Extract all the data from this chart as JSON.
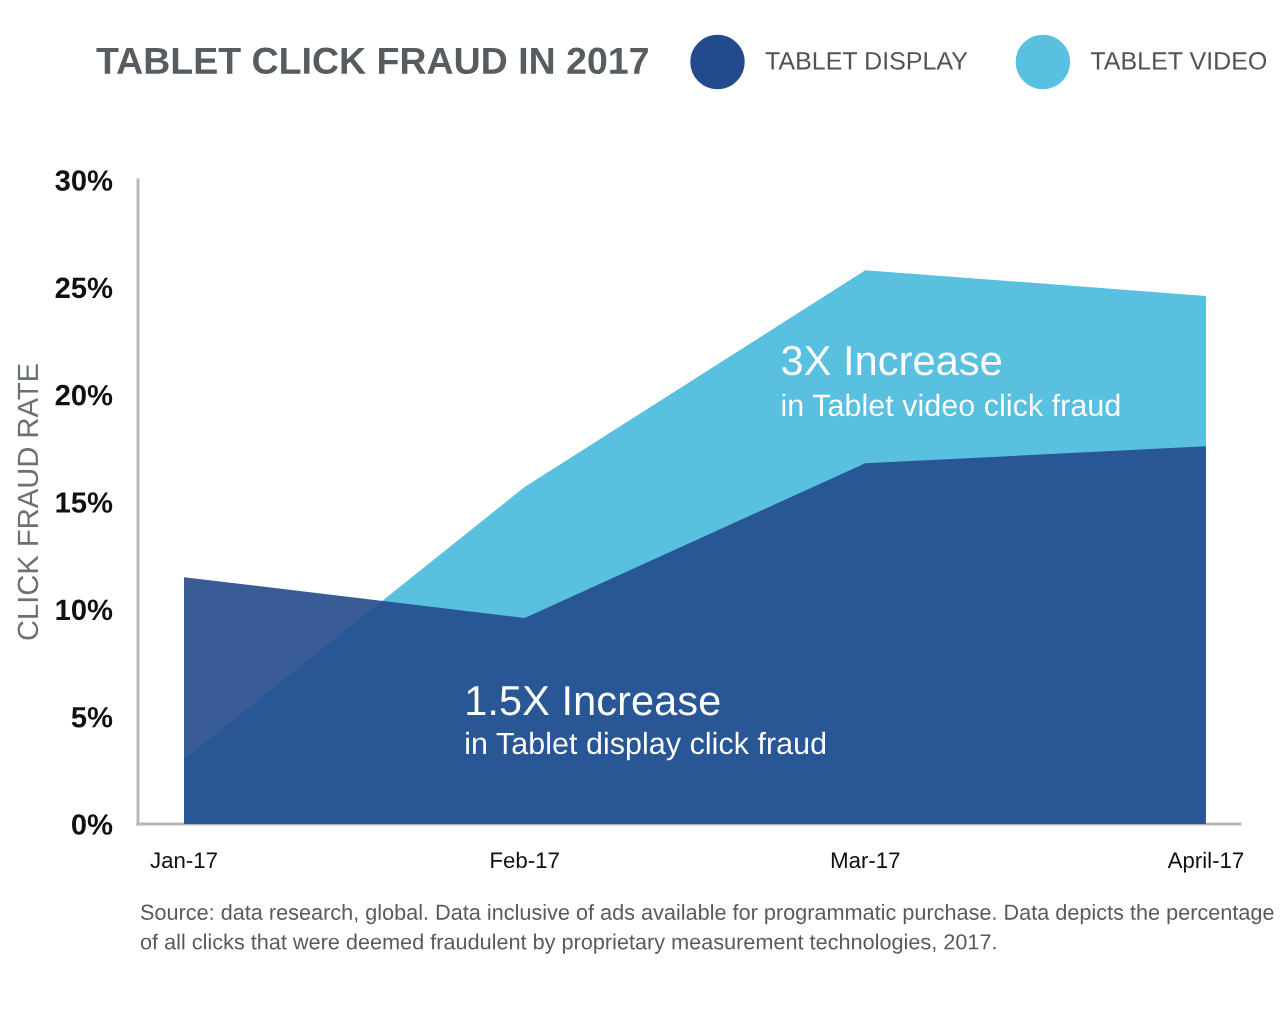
{
  "chart_data": {
    "type": "area",
    "title": "TABLET CLICK FRAUD IN 2017",
    "ylabel": "CLICK FRAUD RATE",
    "categories": [
      "Jan-17",
      "Feb-17",
      "Mar-17",
      "April-17"
    ],
    "series": [
      {
        "name": "TABLET DISPLAY",
        "color": "#234a8c",
        "values": [
          11.5,
          9.6,
          16.8,
          17.6
        ]
      },
      {
        "name": "TABLET VIDEO",
        "color": "#5ac0e0",
        "values": [
          3,
          15.7,
          25.8,
          24.6
        ]
      }
    ],
    "ylim": [
      0,
      30
    ],
    "yticks": [
      {
        "value": 0,
        "label": "0%"
      },
      {
        "value": 5,
        "label": "5%"
      },
      {
        "value": 10,
        "label": "10%"
      },
      {
        "value": 15,
        "label": "15%"
      },
      {
        "value": 20,
        "label": "20%"
      },
      {
        "value": 25,
        "label": "25%"
      },
      {
        "value": 30,
        "label": "30%"
      }
    ],
    "legend": "top",
    "annotations": [
      "3X Increase",
      "in Tablet video click fraud",
      "1.5X Increase",
      "in Tablet display click fraud",
      "Source: data research, global. Data inclusive of ads available for programmatic purchase. Data depicts the percentage of all clicks that were deemed fraudulent by proprietary measurement technologies, 2017."
    ]
  }
}
